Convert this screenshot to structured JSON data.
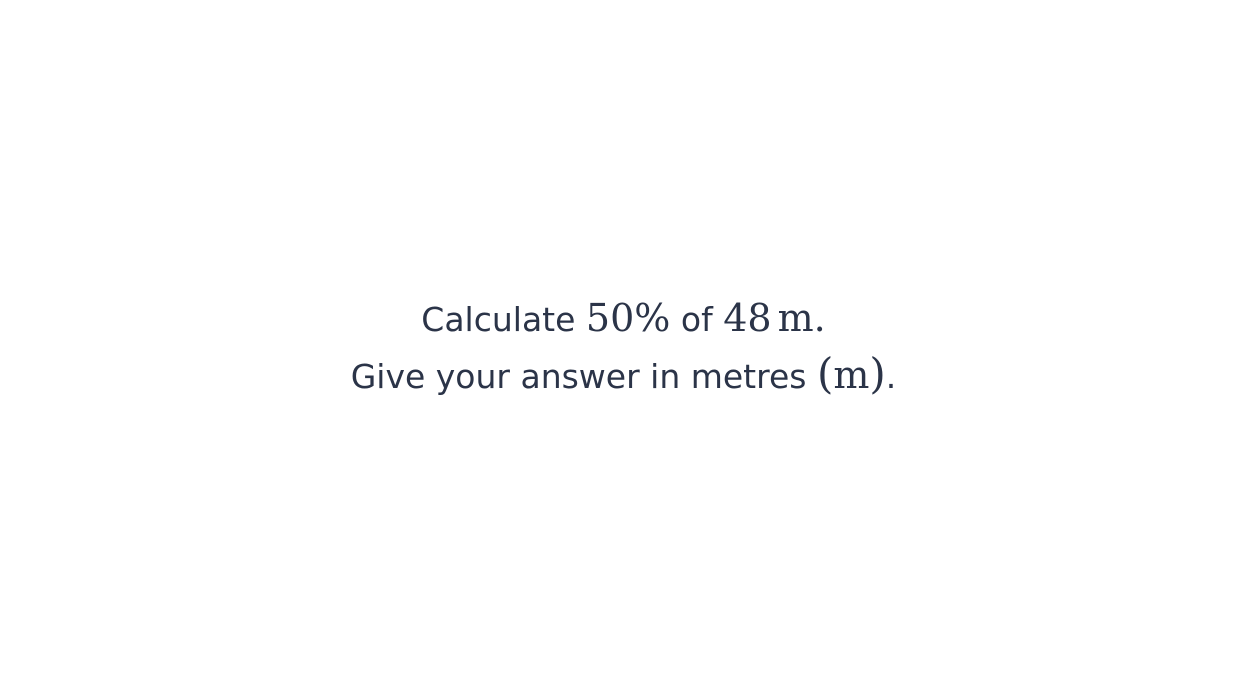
{
  "question": {
    "line1": {
      "prefix": "Calculate",
      "percent": "50%",
      "middle": "of",
      "quantity": "48",
      "unit": "m",
      "end": "."
    },
    "line2": {
      "text": "Give your answer in metres",
      "open_paren": "(",
      "unit": "m",
      "close_paren": ")",
      "end": "."
    }
  },
  "colors": {
    "text": "#2b3448",
    "background": "#ffffff"
  }
}
